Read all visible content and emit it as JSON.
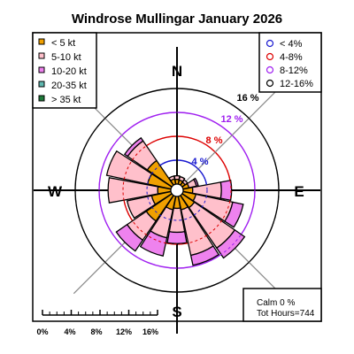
{
  "chart_data": {
    "type": "windrose",
    "title": "Windrose  Mullingar January 2026",
    "compass": [
      "N",
      "E",
      "S",
      "W"
    ],
    "speed_bins": [
      {
        "label": "< 5  kt",
        "color": "#f0a000"
      },
      {
        "label": "5-10 kt",
        "color": "#ffc0cb"
      },
      {
        "label": "10-20 kt",
        "color": "#ee82ee"
      },
      {
        "label": "20-35 kt",
        "color": "#5fb8b0"
      },
      {
        "label": "> 35 kt",
        "color": "#1e7a3a"
      }
    ],
    "frequency_rings": [
      {
        "label": "4 %",
        "value": 4,
        "color": "#1a1ad0"
      },
      {
        "label": "8 %",
        "value": 8,
        "color": "#dd0000"
      },
      {
        "label": "12 %",
        "value": 12,
        "color": "#a020f0"
      },
      {
        "label": "16 %",
        "value": 16,
        "color": "#000000"
      }
    ],
    "ring_legend": [
      "< 4%",
      "4-8%",
      "8-12%",
      "12-16%"
    ],
    "sectors": [
      {
        "dir": 0,
        "values": [
          0.8,
          0.6,
          0,
          0,
          0
        ]
      },
      {
        "dir": 22.5,
        "values": [
          0.7,
          0.6,
          0,
          0,
          0
        ]
      },
      {
        "dir": 45,
        "values": [
          0.6,
          0.5,
          0,
          0,
          0
        ]
      },
      {
        "dir": 67.5,
        "values": [
          1.0,
          1.3,
          0.3,
          0,
          0
        ]
      },
      {
        "dir": 90,
        "values": [
          1.6,
          4.8,
          1.7,
          0,
          0
        ]
      },
      {
        "dir": 112.5,
        "values": [
          2.2,
          6.3,
          1.8,
          0,
          0
        ]
      },
      {
        "dir": 135,
        "values": [
          2.5,
          8.2,
          2.0,
          0,
          0
        ]
      },
      {
        "dir": 157.5,
        "values": [
          2.3,
          7.8,
          1.7,
          0,
          0
        ]
      },
      {
        "dir": 180,
        "values": [
          2.0,
          4.0,
          1.9,
          0,
          0
        ]
      },
      {
        "dir": 202.5,
        "values": [
          2.3,
          4.8,
          3.1,
          0,
          0
        ]
      },
      {
        "dir": 225,
        "values": [
          5.2,
          3.9,
          2.2,
          0,
          0
        ]
      },
      {
        "dir": 247.5,
        "values": [
          3.3,
          4.2,
          0,
          0,
          0
        ]
      },
      {
        "dir": 270,
        "values": [
          2.2,
          8.3,
          0,
          0,
          0
        ]
      },
      {
        "dir": 292.5,
        "values": [
          4.0,
          7.0,
          0,
          0,
          0
        ]
      },
      {
        "dir": 315,
        "values": [
          5.0,
          4.0,
          0.6,
          0,
          0
        ]
      },
      {
        "dir": 337.5,
        "values": [
          0.9,
          0.5,
          0,
          0,
          0
        ]
      }
    ],
    "scale": {
      "ticks": [
        "0%",
        "4%",
        "8%",
        "12%",
        "16%"
      ],
      "max": 16
    },
    "calm": "Calm 0 %",
    "hours": "Tot Hours=744"
  }
}
